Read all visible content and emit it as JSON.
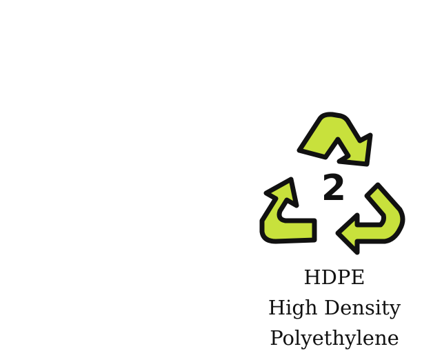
{
  "symbol": {
    "icon": "recycling-triangle-icon",
    "code": "2",
    "arrow_color": "#c8e13c",
    "outline_color": "#111111"
  },
  "label": {
    "abbreviation": "HDPE",
    "line2": "High Density",
    "line3": "Polyethylene"
  }
}
